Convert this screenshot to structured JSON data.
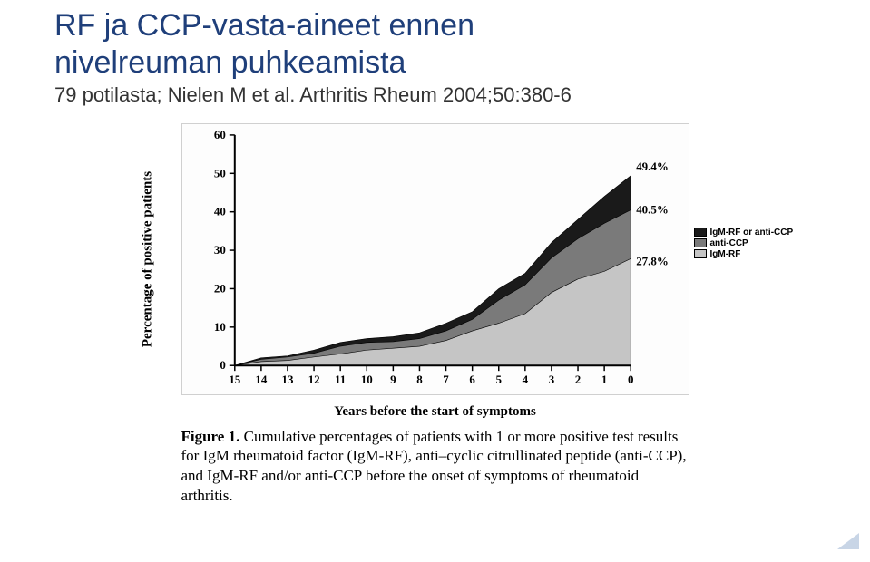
{
  "title_color": "#1f3f7a",
  "subtitle_color": "#333333",
  "title_line1": "RF ja CCP-vasta-aineet ennen",
  "title_line2": "nivelreuman puhkeamista",
  "subtitle": "79 potilasta; Nielen M et al. Arthritis Rheum 2004;50:380-6",
  "chart": {
    "type": "area",
    "xlabel": "Years before the start of symptoms",
    "ylabel": "Percentage of positive patients",
    "xlim": [
      15,
      0
    ],
    "ylim": [
      0,
      60
    ],
    "ytick_step": 10,
    "xtick_step": 1,
    "yticks": [
      0,
      10,
      20,
      30,
      40,
      50,
      60
    ],
    "xticks": [
      15,
      14,
      13,
      12,
      11,
      10,
      9,
      8,
      7,
      6,
      5,
      4,
      3,
      2,
      1,
      0
    ],
    "background": "#fdfdfd",
    "axis_color": "#000000",
    "series": [
      {
        "name": "IgM-RF or anti-CCP",
        "color": "#1a1a1a",
        "x": [
          15,
          14,
          13,
          12,
          11,
          10,
          9,
          8,
          7,
          6,
          5,
          4,
          3,
          2,
          1,
          0
        ],
        "y": [
          0,
          2,
          2.5,
          4,
          6,
          7,
          7.5,
          8.5,
          11,
          14,
          20,
          24,
          32,
          38,
          44,
          49.4
        ],
        "end_label": "49.4%",
        "end_label_dy": -10
      },
      {
        "name": "anti-CCP",
        "color": "#7a7a7a",
        "x": [
          15,
          14,
          13,
          12,
          11,
          10,
          9,
          8,
          7,
          6,
          5,
          4,
          3,
          2,
          1,
          0
        ],
        "y": [
          0,
          1.6,
          2.2,
          3.2,
          5,
          6,
          6.2,
          7,
          9,
          12,
          17,
          21,
          28,
          33,
          37,
          40.5
        ],
        "end_label": "40.5%",
        "end_label_dy": 0
      },
      {
        "name": "IgM-RF",
        "color": "#c5c5c5",
        "x": [
          15,
          14,
          13,
          12,
          11,
          10,
          9,
          8,
          7,
          6,
          5,
          4,
          3,
          2,
          1,
          0
        ],
        "y": [
          0,
          1,
          1.3,
          2.2,
          3,
          4,
          4.5,
          5,
          6.5,
          9,
          11,
          13.5,
          19,
          22.5,
          24.5,
          27.8
        ],
        "end_label": "27.8%",
        "end_label_dy": 3
      }
    ],
    "legend": [
      {
        "swatch": "#1a1a1a",
        "label": "IgM-RF or anti-CCP"
      },
      {
        "swatch": "#7a7a7a",
        "label": "anti-CCP"
      },
      {
        "swatch": "#c5c5c5",
        "label": "IgM-RF"
      }
    ]
  },
  "caption_bold": "Figure 1.",
  "caption_rest": " Cumulative percentages of patients with 1 or more positive test results for IgM rheumatoid factor (IgM-RF), anti–cyclic citrullinated peptide (anti-CCP), and IgM-RF and/or anti-CCP before the onset of symptoms of rheumatoid arthritis."
}
